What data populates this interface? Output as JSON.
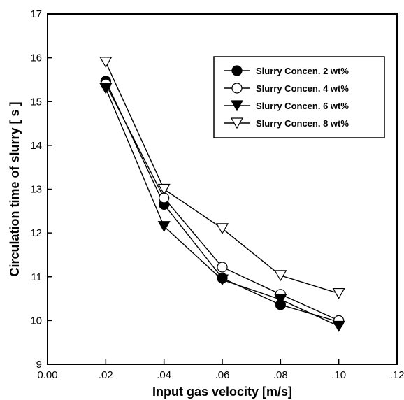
{
  "chart_data": {
    "type": "line",
    "xlabel": "Input gas velocity [m/s]",
    "ylabel": "Circulation time of slurry [ s ]",
    "xlim": [
      0.0,
      0.12
    ],
    "ylim": [
      9,
      17
    ],
    "x_tick_labels": [
      "0.00",
      ".02",
      ".04",
      ".06",
      ".08",
      ".10",
      ".12"
    ],
    "y_tick_labels": [
      "9",
      "10",
      "11",
      "12",
      "13",
      "14",
      "15",
      "16",
      "17"
    ],
    "grid": false,
    "legend_position": "top-right",
    "x": [
      0.02,
      0.04,
      0.06,
      0.08,
      0.1
    ],
    "series": [
      {
        "name": "Slurry Concen. 2 wt%",
        "marker": "filled-circle",
        "values": [
          15.47,
          12.65,
          10.97,
          10.36,
          9.97
        ]
      },
      {
        "name": "Slurry Concen. 4 wt%",
        "marker": "open-circle",
        "values": [
          15.4,
          12.8,
          11.22,
          10.6,
          10.0
        ]
      },
      {
        "name": "Slurry Concen. 6 wt%",
        "marker": "filled-triangle-down",
        "values": [
          15.3,
          12.15,
          10.93,
          10.48,
          9.87
        ]
      },
      {
        "name": "Slurry Concen. 8 wt%",
        "marker": "open-triangle-down",
        "values": [
          15.9,
          13.0,
          12.1,
          11.03,
          10.62
        ]
      }
    ]
  }
}
